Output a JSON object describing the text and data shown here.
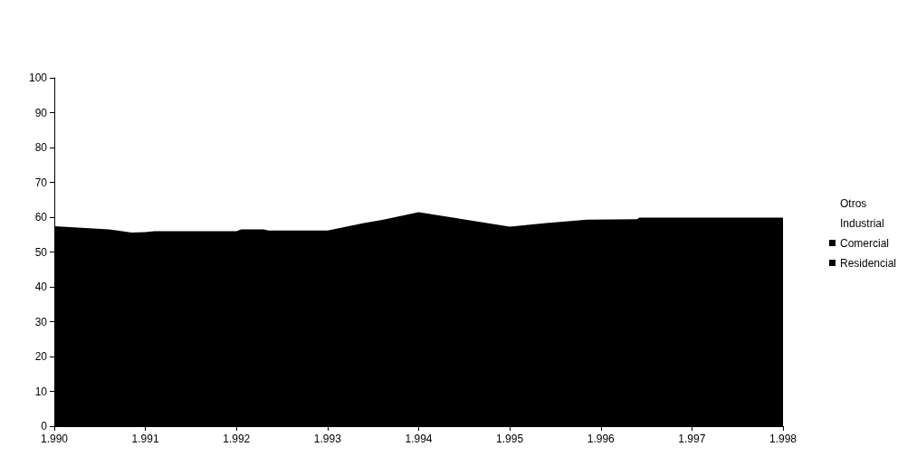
{
  "chart_data": {
    "type": "area",
    "x": [
      1990,
      1990.6,
      1990.85,
      1991,
      1991.1,
      1992,
      1992.05,
      1992.3,
      1992.35,
      1993,
      1993.4,
      1993.6,
      1994,
      1995,
      1995.4,
      1995.85,
      1996.4,
      1996.42,
      1998
    ],
    "series": [
      {
        "name": "Residencial",
        "color": "#000000",
        "values": [
          57.4,
          56.5,
          55.6,
          55.7,
          56.0,
          56.0,
          56.5,
          56.5,
          56.2,
          56.2,
          58.3,
          59.2,
          61.4,
          57.3,
          58.3,
          59.3,
          59.4,
          59.9,
          59.9
        ]
      },
      {
        "name": "Comercial",
        "color": "#000000",
        "values": [
          null,
          null,
          null,
          null,
          null,
          null,
          null,
          null,
          null,
          null,
          null,
          null,
          null,
          null,
          null,
          null,
          null,
          null,
          null
        ]
      },
      {
        "name": "Industrial",
        "values": [
          null,
          null,
          null,
          null,
          null,
          null,
          null,
          null,
          null,
          null,
          null,
          null,
          null,
          null,
          null,
          null,
          null,
          null,
          null
        ]
      },
      {
        "name": "Otros",
        "values": [
          null,
          null,
          null,
          null,
          null,
          null,
          null,
          null,
          null,
          null,
          null,
          null,
          null,
          null,
          null,
          null,
          null,
          null,
          null
        ]
      }
    ],
    "xlim": [
      1990,
      1998
    ],
    "xticks": [
      {
        "value": 1990,
        "label": "1.990"
      },
      {
        "value": 1991,
        "label": "1.991"
      },
      {
        "value": 1992,
        "label": "1.992"
      },
      {
        "value": 1993,
        "label": "1.993"
      },
      {
        "value": 1994,
        "label": "1.994"
      },
      {
        "value": 1995,
        "label": "1.995"
      },
      {
        "value": 1996,
        "label": "1.996"
      },
      {
        "value": 1997,
        "label": "1.997"
      },
      {
        "value": 1998,
        "label": "1.998"
      }
    ],
    "ylim": [
      0,
      100
    ],
    "yticks": [
      0,
      10,
      20,
      30,
      40,
      50,
      60,
      70,
      80,
      90,
      100
    ],
    "grid": false,
    "legend": "right"
  }
}
